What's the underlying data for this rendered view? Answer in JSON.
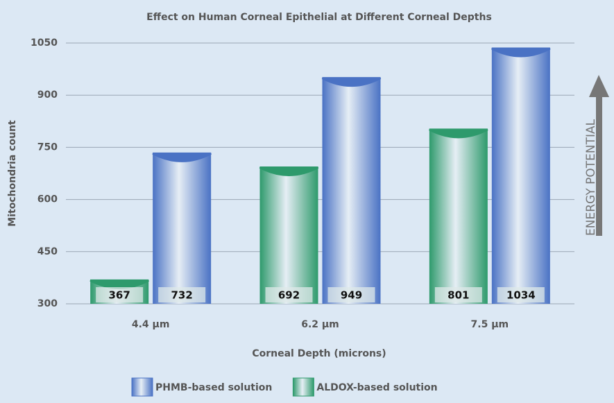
{
  "chart_data": {
    "type": "bar",
    "title": "Effect on Human Corneal Epithelial at Different Corneal Depths",
    "x_label": "Corneal Depth (microns)",
    "y_label": "Mitochondria count",
    "annotation": "ENERGY POTENTIAL",
    "categories": [
      "4.4 µm",
      "6.2 µm",
      "7.5 µm"
    ],
    "series": [
      {
        "name": "PHMB-based solution",
        "color": "#4a72c4",
        "values": [
          732,
          949,
          1034
        ]
      },
      {
        "name": "ALDOX-based solution",
        "color": "#2e9a6c",
        "values": [
          367,
          692,
          801
        ]
      }
    ],
    "ylim": [
      300,
      1050
    ],
    "yticks": [
      300,
      450,
      600,
      750,
      900,
      1050
    ],
    "grid": true
  }
}
